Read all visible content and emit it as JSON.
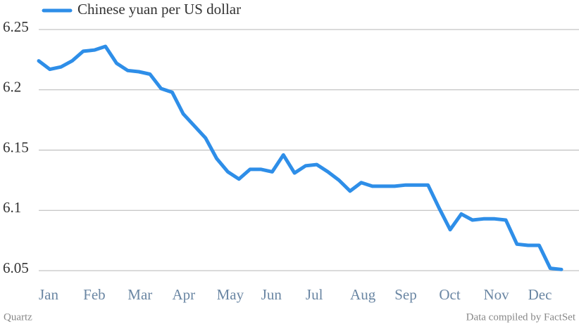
{
  "chart_data": {
    "type": "line",
    "categories": [
      "Jan",
      null,
      null,
      null,
      "Feb",
      null,
      null,
      null,
      "Mar",
      null,
      null,
      null,
      "Apr",
      null,
      null,
      null,
      "May",
      null,
      null,
      null,
      "Jun",
      null,
      null,
      null,
      "Jul",
      null,
      null,
      null,
      "Aug",
      null,
      null,
      null,
      "Sep",
      null,
      null,
      null,
      "Oct",
      null,
      null,
      null,
      "Nov",
      null,
      null,
      null,
      "Dec",
      null,
      null,
      null
    ],
    "series": [
      {
        "name": "Chinese yuan per US dollar",
        "color": "#2e8ee8",
        "values": [
          6.224,
          6.217,
          6.219,
          6.224,
          6.232,
          6.233,
          6.236,
          6.222,
          6.216,
          6.215,
          6.213,
          6.201,
          6.198,
          6.18,
          6.17,
          6.16,
          6.143,
          6.132,
          6.126,
          6.134,
          6.134,
          6.132,
          6.146,
          6.131,
          6.137,
          6.138,
          6.132,
          6.125,
          6.116,
          6.123,
          6.12,
          6.12,
          6.12,
          6.121,
          6.121,
          6.121,
          6.102,
          6.084,
          6.097,
          6.092,
          6.093,
          6.093,
          6.092,
          6.072,
          6.071,
          6.071,
          6.052,
          6.051
        ]
      }
    ],
    "ylim": [
      6.05,
      6.25
    ],
    "yticks": [
      6.05,
      6.1,
      6.15,
      6.2,
      6.25
    ],
    "grid": true,
    "source": "Data compiled by FactSet",
    "brand": "Quartz"
  }
}
